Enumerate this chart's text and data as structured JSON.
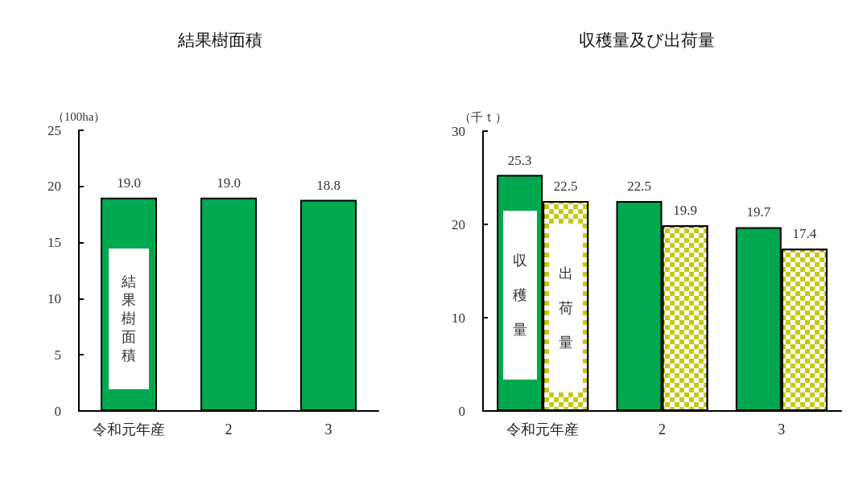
{
  "chart_data": [
    {
      "type": "bar",
      "title": "結果樹面積",
      "ylabel": "（100ha）",
      "categories": [
        "令和元年産",
        "2",
        "3"
      ],
      "series": [
        {
          "name": "結果樹面積",
          "color": "#00a84f",
          "values": [
            19.0,
            19.0,
            18.8
          ],
          "value_labels": [
            "19.0",
            "19.0",
            "18.8"
          ]
        }
      ],
      "ylim": [
        0,
        25
      ],
      "yticks": [
        0,
        5,
        10,
        15,
        20,
        25
      ]
    },
    {
      "type": "bar",
      "title": "収穫量及び出荷量",
      "ylabel": "（千ｔ）",
      "categories": [
        "令和元年産",
        "2",
        "3"
      ],
      "series": [
        {
          "name": "収穫量",
          "color": "#00a84f",
          "values": [
            25.3,
            22.5,
            19.7
          ],
          "value_labels": [
            "25.3",
            "22.5",
            "19.7"
          ]
        },
        {
          "name": "出荷量",
          "color": "#c8c814",
          "values": [
            22.5,
            19.9,
            17.4
          ],
          "value_labels": [
            "22.5",
            "19.9",
            "17.4"
          ]
        }
      ],
      "ylim": [
        0,
        30
      ],
      "yticks": [
        0,
        10,
        20,
        30
      ]
    }
  ]
}
